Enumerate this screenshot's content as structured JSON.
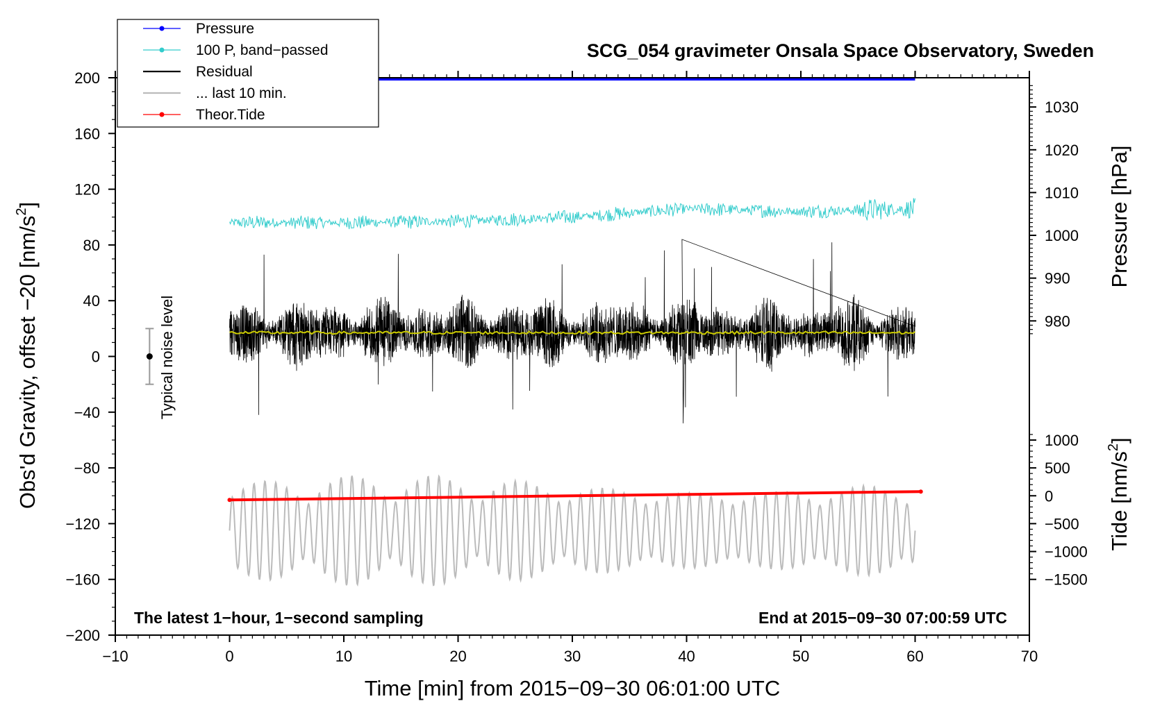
{
  "chart_data": {
    "type": "line",
    "title": "SCG_054 gravimeter Onsala Space Observatory, Sweden",
    "xlabel": "Time [min] from 2015−09−30 06:01:00 UTC",
    "ylabel_left": "Obs'd Gravity, offset −20 [nm/s",
    "ylabel_left_sup": "2",
    "ylabel_left_tail": "]",
    "ylabel_pressure": "Pressure [hPa]",
    "ylabel_tide": "Tide [nm/s",
    "ylabel_tide_sup": "2",
    "ylabel_tide_tail": "]",
    "xlim": [
      -10,
      70
    ],
    "ylim": [
      -200,
      200
    ],
    "x_ticks": [
      -10,
      0,
      10,
      20,
      30,
      40,
      50,
      60,
      70
    ],
    "x_tick_labels": [
      "−10",
      "0",
      "10",
      "20",
      "30",
      "40",
      "50",
      "60",
      "70"
    ],
    "y_ticks": [
      200,
      160,
      120,
      80,
      40,
      0,
      -40,
      -80,
      -120,
      -160,
      -200
    ],
    "y_tick_labels": [
      "200",
      "160",
      "120",
      "80",
      "40",
      "0",
      "−40",
      "−80",
      "−120",
      "−160",
      "−200"
    ],
    "pressure_axis": {
      "ticks": [
        1030,
        1020,
        1010,
        1000,
        990,
        980
      ],
      "tick_labels": [
        "1030",
        "1020",
        "1010",
        "1000",
        "990",
        "980"
      ],
      "gravity_at_980": 25.5,
      "gravity_per_hpa": 3.07
    },
    "tide_axis": {
      "ticks": [
        1000,
        500,
        0,
        -500,
        -1000,
        -1500
      ],
      "tick_labels": [
        "1000",
        "500",
        "0",
        "−500",
        "−1000",
        "−1500"
      ],
      "gravity_at_0": -100,
      "gravity_per_unit": 0.04
    },
    "annotation_left": "The latest 1−hour, 1−second sampling",
    "annotation_right": "End at 2015−09−30 07:00:59 UTC",
    "noise_label": "Typical noise level",
    "noise_bar": {
      "x": -7,
      "center": 0,
      "half_range": 20
    },
    "legend": [
      {
        "label": "Pressure",
        "color": "#0000ff",
        "marker": true
      },
      {
        "label": "100 P, band−passed",
        "color": "#33cccc",
        "marker": true
      },
      {
        "label": "Residual",
        "color": "#000000",
        "marker": false
      },
      {
        "label": "... last 10 min.",
        "color": "#bbbbbb",
        "marker": false
      },
      {
        "label": "Theor.Tide",
        "color": "#ff0000",
        "marker": true
      }
    ],
    "series": [
      {
        "name": "Pressure",
        "color": "#0000ff",
        "x_range": [
          0,
          60
        ],
        "level": 199
      },
      {
        "name": "100 P, band−passed",
        "color": "#33cccc",
        "x_range": [
          0,
          60
        ],
        "trend_x": [
          0,
          10,
          20,
          30,
          40,
          50,
          60
        ],
        "trend_y": [
          96,
          96,
          97,
          100,
          106,
          104,
          106
        ],
        "amplitude": 4
      },
      {
        "name": "Residual",
        "color": "#000000",
        "x_range": [
          0,
          60
        ],
        "center": 17,
        "amplitude": 22,
        "peak_max": 84,
        "peak_min": -48
      },
      {
        "name": "Residual mean",
        "color": "#cccc00",
        "x_range": [
          0,
          60
        ],
        "center": 17
      },
      {
        "name": "... last 10 min.",
        "color": "#bbbbbb",
        "x_range": [
          0,
          60
        ],
        "center": -125,
        "amplitude": 25,
        "min": -170,
        "max": -80
      },
      {
        "name": "Theor.Tide",
        "color": "#ff0000",
        "x": [
          0,
          60.5
        ],
        "y": [
          -103,
          -97
        ]
      }
    ]
  }
}
